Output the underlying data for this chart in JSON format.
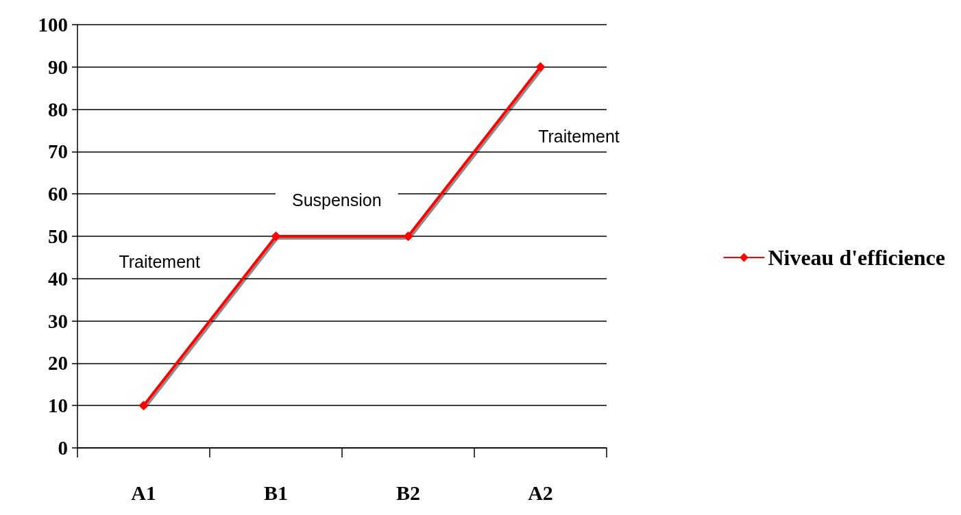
{
  "chart_data": {
    "type": "line",
    "categories": [
      "A1",
      "B1",
      "B2",
      "A2"
    ],
    "series": [
      {
        "name": "Niveau d'efficience",
        "color": "#ff0000",
        "values": [
          10,
          50,
          50,
          90
        ]
      }
    ],
    "ylim": [
      0,
      100
    ],
    "yticks": [
      0,
      10,
      20,
      30,
      40,
      50,
      60,
      70,
      80,
      90,
      100
    ],
    "grid": "y",
    "legend": "right",
    "marker": "diamond",
    "line_style": "solid",
    "annotations": [
      "Traitement",
      "Suspension",
      "Traitement"
    ]
  }
}
